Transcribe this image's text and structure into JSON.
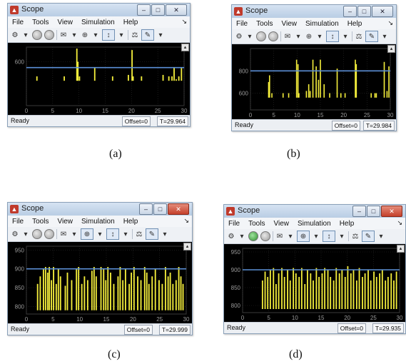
{
  "panels": [
    {
      "window_title": "Scope",
      "menu": [
        "File",
        "Tools",
        "View",
        "Simulation",
        "Help"
      ],
      "status": {
        "ready": "Ready",
        "offset": "Offset=0",
        "time": "T=29.964"
      },
      "caption": "(a)",
      "chart_data": {
        "type": "bar",
        "x_ticks": [
          "0",
          "5",
          "10",
          "15",
          "20",
          "25",
          "30"
        ],
        "y_ticks": [
          "600"
        ],
        "xlim": [
          0,
          30
        ],
        "ylim": [
          300,
          700
        ],
        "reference_line": 560,
        "x": [
          2.0,
          7.2,
          9.6,
          9.8,
          10.1,
          13.0,
          16.4,
          19.4,
          20.1,
          20.3,
          21.9,
          26.0,
          27.1,
          27.7,
          28.1,
          28.5,
          29.0,
          29.5
        ],
        "values": [
          500,
          500,
          690,
          600,
          500,
          560,
          500,
          510,
          680,
          500,
          500,
          510,
          500,
          500,
          560,
          480,
          500,
          560
        ],
        "base": 470,
        "line_color": "#5b8fd6",
        "bar_color": "#f2ec3b"
      }
    },
    {
      "window_title": "Scope",
      "menu": [
        "File",
        "Tools",
        "View",
        "Simulation",
        "Help"
      ],
      "status": {
        "ready": "Ready",
        "offset": "Offset=0",
        "time": "T=29.984"
      },
      "caption": "(b)",
      "chart_data": {
        "type": "bar",
        "x_ticks": [
          "0",
          "5",
          "10",
          "15",
          "20",
          "25",
          "30"
        ],
        "y_ticks": [
          "800",
          "600"
        ],
        "xlim": [
          0,
          30
        ],
        "ylim": [
          450,
          1000
        ],
        "reference_line": 800,
        "x": [
          3.9,
          4.1,
          4.6,
          7.0,
          8.2,
          9.9,
          10.2,
          10.4,
          12.0,
          12.5,
          12.8,
          13.4,
          14.1,
          14.6,
          15.0,
          15.8,
          17.0,
          18.6,
          19.4,
          20.3,
          22.5,
          22.7,
          25.9,
          26.7,
          27.0,
          28.7,
          29.3,
          29.7
        ],
        "values": [
          700,
          760,
          600,
          600,
          600,
          900,
          860,
          600,
          620,
          680,
          620,
          900,
          840,
          720,
          900,
          680,
          600,
          820,
          600,
          600,
          900,
          860,
          600,
          600,
          600,
          880,
          620,
          840
        ],
        "base": 560,
        "line_color": "#5b8fd6",
        "bar_color": "#f2ec3b"
      }
    },
    {
      "window_title": "Scope",
      "menu": [
        "File",
        "Tools",
        "View",
        "Simulation",
        "Help"
      ],
      "status": {
        "ready": "Ready",
        "offset": "Offset=0",
        "time": "T=29.999"
      },
      "caption": "(c)",
      "chart_data": {
        "type": "bar",
        "x_ticks": [
          "0",
          "5",
          "10",
          "15",
          "20",
          "25",
          "30"
        ],
        "y_ticks": [
          "950",
          "900",
          "850",
          "800"
        ],
        "xlim": [
          0,
          30
        ],
        "ylim": [
          780,
          960
        ],
        "reference_line": 900,
        "x": [
          2.1,
          2.6,
          3.2,
          3.6,
          4.0,
          4.3,
          4.7,
          5.1,
          5.6,
          6.0,
          6.4,
          7.3,
          7.7,
          8.5,
          9.4,
          9.8,
          10.4,
          10.9,
          11.5,
          12.3,
          12.7,
          13.1,
          14.0,
          14.5,
          14.9,
          15.3,
          15.8,
          16.4,
          17.2,
          17.6,
          18.1,
          18.6,
          19.3,
          19.7,
          20.2,
          20.9,
          21.5,
          22.2,
          22.6,
          23.0,
          23.6,
          24.2,
          24.9,
          25.5,
          26.1,
          26.6,
          27.0,
          27.5,
          28.1,
          28.6,
          29.0,
          29.4
        ],
        "values": [
          860,
          880,
          900,
          905,
          890,
          905,
          870,
          905,
          860,
          900,
          880,
          855,
          890,
          870,
          900,
          905,
          860,
          880,
          870,
          895,
          905,
          880,
          905,
          900,
          870,
          905,
          890,
          860,
          880,
          905,
          870,
          900,
          860,
          890,
          905,
          880,
          870,
          905,
          890,
          860,
          880,
          900,
          870,
          860,
          905,
          880,
          890,
          860,
          870,
          905,
          880,
          860
        ],
        "base": 790,
        "line_color": "#5b8fd6",
        "bar_color": "#f2ec3b"
      }
    },
    {
      "window_title": "Scope",
      "menu": [
        "File",
        "Tools",
        "View",
        "Simulation",
        "Help"
      ],
      "status": {
        "ready": "Ready",
        "offset": "Offset=0",
        "time": "T=29.935"
      },
      "caption": "(d)",
      "chart_data": {
        "type": "bar",
        "x_ticks": [
          "0",
          "5",
          "10",
          "15",
          "20",
          "25",
          "30"
        ],
        "y_ticks": [
          "950",
          "900",
          "850",
          "800"
        ],
        "xlim": [
          0,
          30
        ],
        "ylim": [
          780,
          960
        ],
        "reference_line": 900,
        "x": [
          3.8,
          4.3,
          4.8,
          5.3,
          5.9,
          6.4,
          6.9,
          7.5,
          8.0,
          8.6,
          9.1,
          9.7,
          10.2,
          10.8,
          11.3,
          11.9,
          12.4,
          13.0,
          13.5,
          14.1,
          14.6,
          15.2,
          15.7,
          16.3,
          16.8,
          17.4,
          17.9,
          18.5,
          19.0,
          19.6,
          20.1,
          20.7,
          21.2,
          21.8,
          22.3,
          22.9,
          23.4,
          24.0,
          24.5,
          25.1,
          25.6,
          26.2,
          26.7,
          27.3,
          27.8,
          28.4,
          28.9,
          29.4
        ],
        "values": [
          870,
          895,
          880,
          900,
          905,
          860,
          890,
          905,
          880,
          900,
          870,
          905,
          890,
          880,
          905,
          860,
          900,
          890,
          870,
          905,
          880,
          890,
          905,
          900,
          880,
          870,
          905,
          890,
          900,
          880,
          910,
          890,
          900,
          870,
          905,
          880,
          890,
          900,
          870,
          895,
          880,
          890,
          900,
          870,
          880,
          890,
          870,
          895
        ],
        "base": 790,
        "line_color": "#5b8fd6",
        "bar_color": "#f2ec3b"
      }
    }
  ]
}
